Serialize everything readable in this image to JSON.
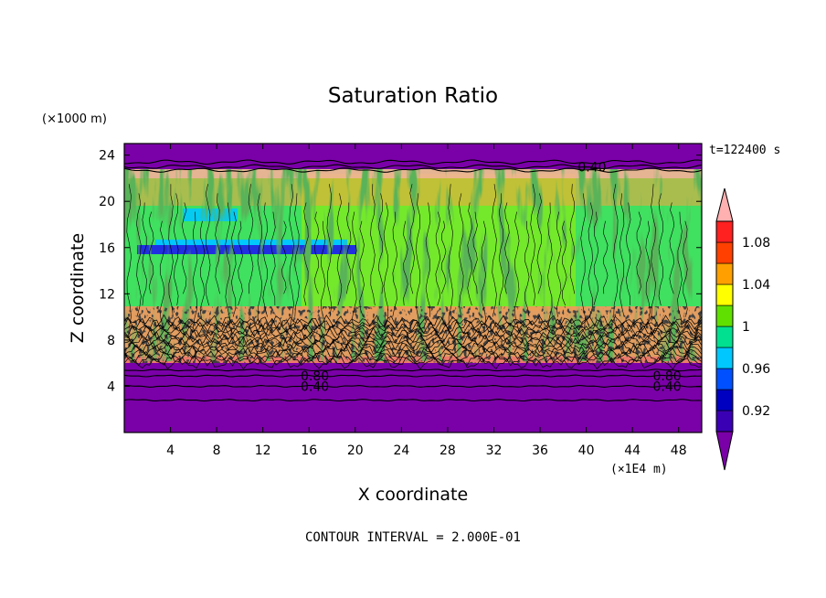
{
  "chart_data": {
    "type": "heatmap",
    "title": "Saturation Ratio",
    "xlabel": "X coordinate",
    "ylabel": "Z coordinate",
    "x_unit": "(×1E4 m)",
    "y_unit": "(×1000 m)",
    "time_label": "t=122400 s",
    "footer": "CONTOUR INTERVAL = 2.000E-01",
    "xlim": [
      0,
      50
    ],
    "ylim": [
      0,
      25
    ],
    "x_ticks": [
      "4",
      "8",
      "12",
      "16",
      "20",
      "24",
      "28",
      "32",
      "36",
      "40",
      "44",
      "48"
    ],
    "y_ticks": [
      "4",
      "8",
      "12",
      "16",
      "20",
      "24"
    ],
    "colorbar": {
      "tick_labels": [
        "1.08",
        "1.04",
        "1",
        "0.96",
        "0.92"
      ],
      "levels": [
        0.9,
        0.92,
        0.94,
        0.96,
        0.98,
        1.0,
        1.02,
        1.04,
        1.06,
        1.08,
        1.1
      ],
      "colors": [
        "#7a00a8",
        "#3a00b4",
        "#0000c0",
        "#0050ff",
        "#00c8ff",
        "#00e090",
        "#60e000",
        "#ffff00",
        "#ffa000",
        "#ff4000",
        "#ff2020",
        "#ffb0b0"
      ]
    },
    "contour_labels": [
      {
        "text": "0.40",
        "x": 40.5,
        "z": 23.0
      },
      {
        "text": "0.80",
        "x": 16.5,
        "z": 4.9
      },
      {
        "text": "0.40",
        "x": 16.5,
        "z": 4.0
      },
      {
        "text": "0.80",
        "x": 47.0,
        "z": 4.9
      },
      {
        "text": "0.40",
        "x": 47.0,
        "z": 4.0
      }
    ],
    "regions": [
      {
        "z_range": [
          0,
          5.5
        ],
        "value_class": "below 0.90 (dry)",
        "color": "#7a00a8"
      },
      {
        "z_range": [
          5.5,
          10
        ],
        "value_class": "mixed 0.92–1.08",
        "color": "#ffa060"
      },
      {
        "z_range": [
          10,
          22
        ],
        "value_class": "near 1.0",
        "color": "#40e060"
      },
      {
        "z_range": [
          22,
          23
        ],
        "value_class": "above 1.04",
        "color": "#ff8040"
      },
      {
        "z_range": [
          23,
          25
        ],
        "value_class": "below 0.90 (dry)",
        "color": "#7a00a8"
      }
    ]
  }
}
